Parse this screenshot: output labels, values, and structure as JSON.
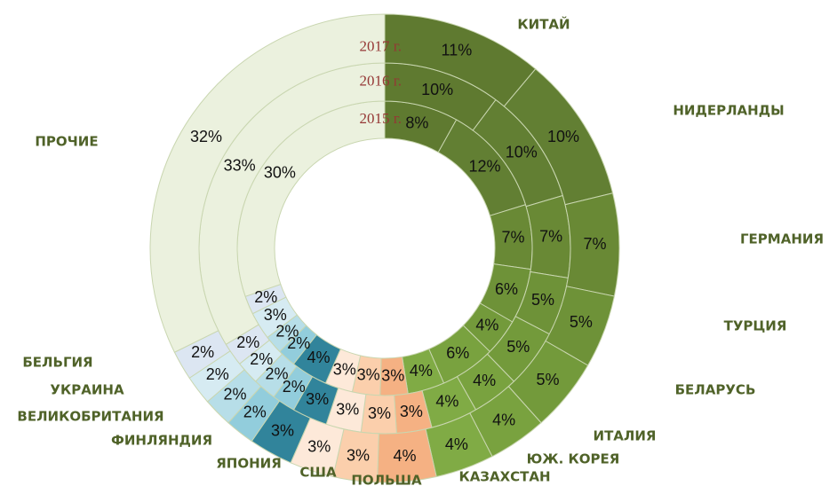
{
  "chart_data": {
    "type": "donut",
    "categories": [
      "КИТАЙ",
      "НИДЕРЛАНДЫ",
      "ГЕРМАНИЯ",
      "ТУРЦИЯ",
      "БЕЛАРУСЬ",
      "ИТАЛИЯ",
      "ЮЖ. КОРЕЯ",
      "КАЗАХСТАН",
      "ПОЛЬША",
      "США",
      "ЯПОНИЯ",
      "ФИНЛЯНДИЯ",
      "ВЕЛИКОБРИТАНИЯ",
      "УКРАИНА",
      "БЕЛЬГИЯ",
      "ПРОЧИЕ"
    ],
    "colors": [
      "#5f7a30",
      "#627f33",
      "#698935",
      "#6e9238",
      "#739a3b",
      "#79a23f",
      "#80ab45",
      "#f5b183",
      "#fbcfac",
      "#fde9d9",
      "#31849b",
      "#92cddc",
      "#b7dee8",
      "#d6ebf2",
      "#dce6f2",
      "#ebf1de"
    ],
    "series": [
      {
        "name": "2015 г.",
        "values": [
          8,
          12,
          7,
          6,
          4,
          6,
          4,
          3,
          3,
          3,
          4,
          2,
          2,
          3,
          2,
          30
        ],
        "value_labels": [
          "8%",
          "12%",
          "7%",
          "6%",
          "4%",
          "6%",
          "4%",
          "3%",
          "3%",
          "3%",
          "4%",
          "2%",
          "2%",
          "3%",
          "2%",
          "30%"
        ]
      },
      {
        "name": "2016 г.",
        "values": [
          10,
          10,
          7,
          5,
          5,
          4,
          4,
          3,
          3,
          3,
          3,
          2,
          2,
          2,
          2,
          33
        ],
        "value_labels": [
          "10%",
          "10%",
          "7%",
          "5%",
          "5%",
          "4%",
          "4%",
          "3%",
          "3%",
          "3%",
          "3%",
          "2%",
          "2%",
          "2%",
          "2%",
          "33%"
        ]
      },
      {
        "name": "2017 г.",
        "values": [
          11,
          10,
          7,
          5,
          5,
          4,
          4,
          4,
          3,
          3,
          3,
          2,
          2,
          2,
          2,
          32
        ],
        "value_labels": [
          "11%",
          "10%",
          "7%",
          "5%",
          "5%",
          "4%",
          "4%",
          "4%",
          "3%",
          "3%",
          "3%",
          "2%",
          "2%",
          "2%",
          "2%",
          "32%"
        ]
      }
    ]
  }
}
